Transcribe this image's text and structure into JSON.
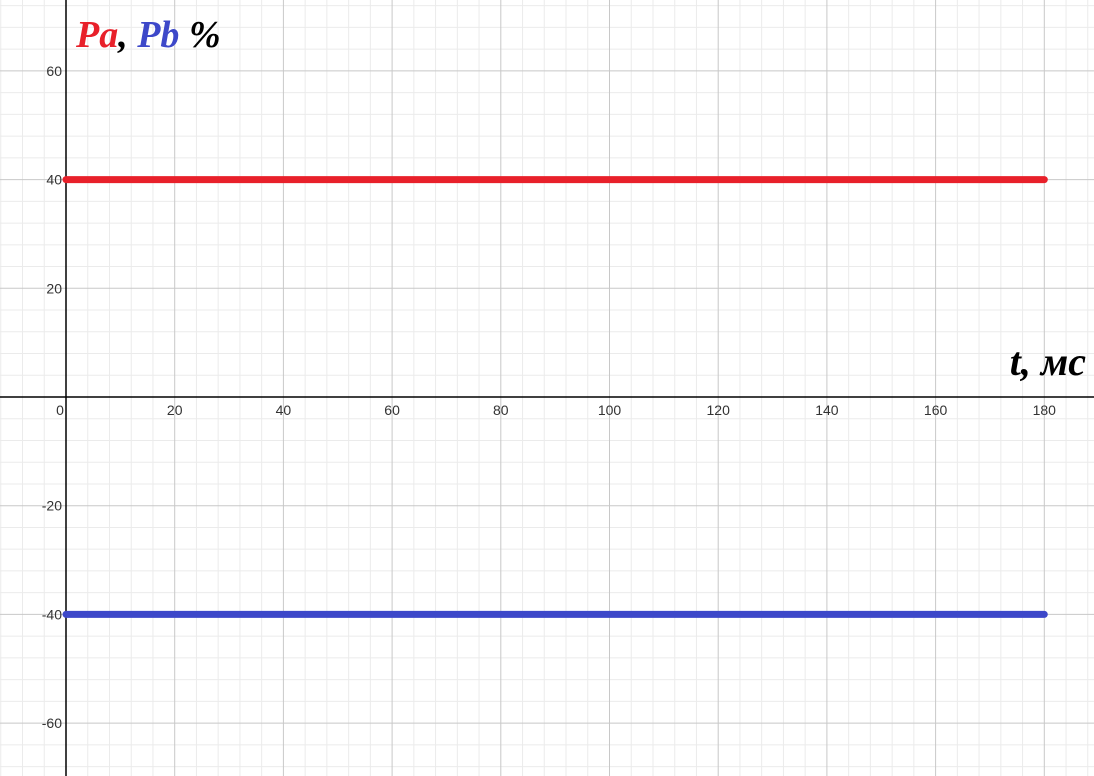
{
  "chart_data": {
    "type": "line",
    "title": "",
    "ylabel_parts": [
      {
        "text": "Pa",
        "color": "#e8202a"
      },
      {
        "text": ", ",
        "color": "#000000"
      },
      {
        "text": "Pb",
        "color": "#3d48c9"
      },
      {
        "text": " %",
        "color": "#000000"
      }
    ],
    "xlabel": "t, мс",
    "xlim": [
      -10,
      190
    ],
    "ylim": [
      -69,
      72
    ],
    "x_ticks": [
      0,
      20,
      40,
      60,
      80,
      100,
      120,
      140,
      160,
      180
    ],
    "x_tick_labels": [
      "0",
      "20",
      "40",
      "60",
      "80",
      "100",
      "120",
      "140",
      "160",
      "180"
    ],
    "y_ticks": [
      -60,
      -40,
      -20,
      20,
      40,
      60
    ],
    "y_tick_labels": [
      "-60",
      "-40",
      "-20",
      "20",
      "40",
      "60"
    ],
    "grid": true,
    "series": [
      {
        "label": "Pa",
        "color": "#e8202a",
        "x": [
          0,
          180
        ],
        "y": [
          40,
          40
        ]
      },
      {
        "label": "Pb",
        "color": "#3d48c9",
        "x": [
          0,
          180
        ],
        "y": [
          -40,
          -40
        ]
      }
    ]
  }
}
